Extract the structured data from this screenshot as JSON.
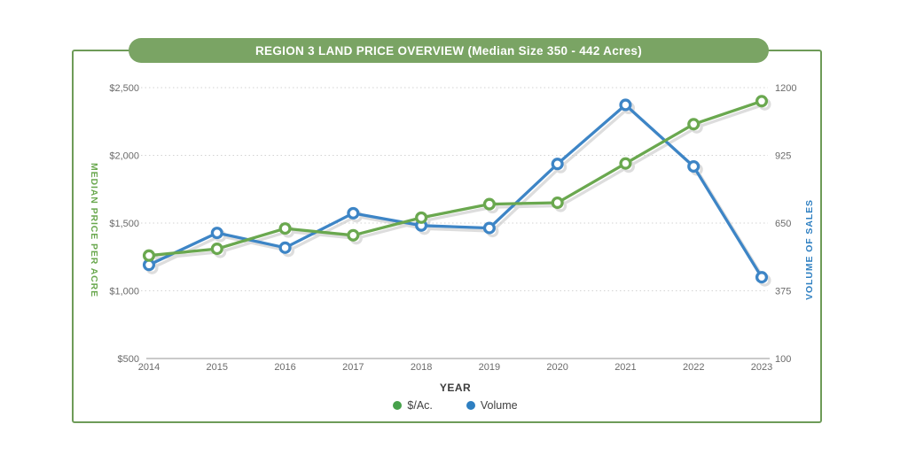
{
  "banner": {
    "title": "REGION 3 LAND PRICE OVERVIEW (Median Size 350 - 442 Acres)",
    "bg_color": "#7aa464",
    "text_color": "#ffffff"
  },
  "panel": {
    "border_color": "#6e9b58"
  },
  "chart_data": {
    "type": "line",
    "title": "REGION 3 LAND PRICE OVERVIEW (Median Size 350 - 442 Acres)",
    "x": [
      "2014",
      "2015",
      "2016",
      "2017",
      "2018",
      "2019",
      "2020",
      "2021",
      "2022",
      "2023"
    ],
    "xlabel": "YEAR",
    "grid": "horizontal-dashed",
    "legend_position": "bottom-center",
    "left_axis": {
      "label": "MEDIAN PRICE PER ACRE",
      "min": 500,
      "max": 2500,
      "ticks": [
        "$2,500",
        "$2,000",
        "$1,500",
        "$1,000",
        "$500"
      ],
      "tick_values": [
        2500,
        2000,
        1500,
        1000,
        500
      ],
      "color": "#6aa84f"
    },
    "right_axis": {
      "label": "VOLUME OF SALES",
      "min": 100,
      "max": 1200,
      "ticks": [
        "1200",
        "925",
        "650",
        "375",
        "100"
      ],
      "tick_values": [
        1200,
        925,
        650,
        375,
        100
      ],
      "color": "#2e7fc1"
    },
    "series": [
      {
        "name": "$/Ac.",
        "axis": "left",
        "color": "#6aa84f",
        "marker": "circle-open",
        "values": [
          1260,
          1310,
          1460,
          1410,
          1540,
          1640,
          1650,
          1940,
          2230,
          2400
        ]
      },
      {
        "name": "Volume",
        "axis": "right",
        "color": "#3d85c6",
        "marker": "circle-open",
        "values": [
          480,
          610,
          550,
          690,
          640,
          630,
          890,
          1130,
          880,
          430
        ]
      }
    ],
    "legend": {
      "items": [
        {
          "label": "$/Ac.",
          "dot_color": "#47a14b"
        },
        {
          "label": "Volume",
          "dot_color": "#2e7fc1"
        }
      ]
    }
  }
}
